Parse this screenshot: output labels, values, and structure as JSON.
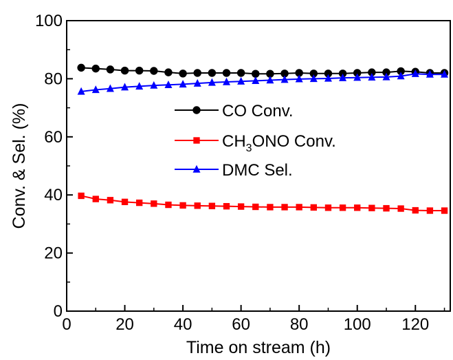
{
  "chart_data": {
    "type": "line",
    "title": "",
    "xlabel": "Time on stream (h)",
    "ylabel": "Conv. & Sel. (%)",
    "xlim": [
      0,
      132
    ],
    "ylim": [
      0,
      100
    ],
    "xticks": [
      0,
      20,
      40,
      60,
      80,
      100,
      120
    ],
    "yticks": [
      0,
      20,
      40,
      60,
      80,
      100
    ],
    "xtick_labels": [
      "0",
      "20",
      "40",
      "60",
      "80",
      "100",
      "120"
    ],
    "ytick_labels": [
      "0",
      "20",
      "40",
      "60",
      "80",
      "100"
    ],
    "grid": false,
    "legend_position": "center",
    "x": [
      5,
      10,
      15,
      20,
      25,
      30,
      35,
      40,
      45,
      50,
      55,
      60,
      65,
      70,
      75,
      80,
      85,
      90,
      95,
      100,
      105,
      110,
      115,
      120,
      125,
      130
    ],
    "series": [
      {
        "name": "CO Conv.",
        "name_main": "CO Conv.",
        "color": "#000000",
        "marker": "circle",
        "values": [
          83.8,
          83.5,
          83.2,
          82.8,
          82.8,
          82.7,
          82.2,
          81.8,
          82.0,
          82.0,
          82.0,
          82.0,
          81.7,
          81.7,
          81.8,
          82.0,
          81.8,
          81.8,
          81.8,
          82.0,
          82.2,
          82.2,
          82.6,
          82.4,
          82.0,
          82.0
        ]
      },
      {
        "name": "CH3ONO Conv.",
        "name_main": "CH",
        "name_sub": "3",
        "name_rest": "ONO Conv.",
        "color": "#ff0000",
        "marker": "square",
        "values": [
          39.7,
          38.6,
          38.2,
          37.6,
          37.3,
          37.0,
          36.6,
          36.4,
          36.3,
          36.2,
          36.1,
          36.0,
          35.9,
          35.8,
          35.8,
          35.8,
          35.7,
          35.6,
          35.6,
          35.6,
          35.5,
          35.4,
          35.3,
          34.7,
          34.6,
          34.6
        ]
      },
      {
        "name": "DMC Sel.",
        "name_main": "DMC Sel.",
        "color": "#0000ff",
        "marker": "triangle",
        "values": [
          75.6,
          76.2,
          76.6,
          77.1,
          77.4,
          77.7,
          77.9,
          78.1,
          78.4,
          78.7,
          78.9,
          79.1,
          79.3,
          79.5,
          79.7,
          79.9,
          80.0,
          80.1,
          80.3,
          80.4,
          80.5,
          80.6,
          80.9,
          81.7,
          81.5,
          81.5
        ]
      }
    ]
  }
}
